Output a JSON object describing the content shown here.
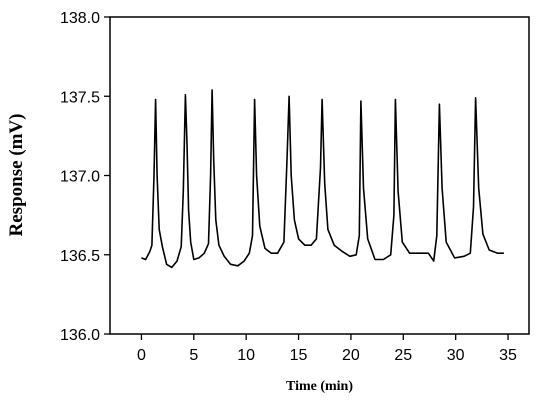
{
  "chart_data": {
    "type": "line",
    "xlabel": "Time (min)",
    "ylabel": "Response (mV)",
    "xlim": [
      -3,
      37
    ],
    "ylim": [
      136.0,
      138.0
    ],
    "xticks": [
      0,
      5,
      10,
      15,
      20,
      25,
      30,
      35
    ],
    "yticks": [
      136.0,
      136.5,
      137.0,
      137.5,
      138.0
    ],
    "xtick_labels": [
      "0",
      "5",
      "10",
      "15",
      "20",
      "25",
      "30",
      "35"
    ],
    "ytick_labels": [
      "136.0",
      "136.5",
      "137.0",
      "137.5",
      "138.0"
    ],
    "grid": false,
    "legend": "none",
    "series": [
      {
        "color": "#000000",
        "x": [
          0.0,
          0.4,
          0.8,
          1.0,
          1.2,
          1.35,
          1.5,
          1.7,
          2.0,
          2.4,
          2.9,
          3.4,
          3.8,
          4.0,
          4.2,
          4.35,
          4.5,
          4.7,
          5.0,
          5.5,
          6.0,
          6.4,
          6.6,
          6.75,
          6.9,
          7.1,
          7.4,
          7.9,
          8.5,
          9.2,
          9.8,
          10.3,
          10.6,
          10.8,
          11.0,
          11.3,
          11.8,
          12.4,
          13.0,
          13.6,
          13.9,
          14.1,
          14.3,
          14.6,
          15.0,
          15.6,
          16.2,
          16.7,
          17.1,
          17.25,
          17.5,
          17.8,
          18.4,
          19.2,
          19.9,
          20.5,
          20.8,
          20.95,
          21.2,
          21.6,
          22.3,
          23.1,
          23.8,
          24.1,
          24.25,
          24.5,
          24.9,
          25.6,
          26.5,
          27.4,
          27.9,
          28.2,
          28.45,
          28.7,
          29.1,
          29.9,
          30.8,
          31.4,
          31.7,
          31.9,
          32.2,
          32.6,
          33.2,
          34.0,
          34.6
        ],
        "y": [
          136.48,
          136.47,
          136.52,
          136.56,
          137.0,
          137.48,
          137.0,
          136.66,
          136.55,
          136.44,
          136.42,
          136.46,
          136.55,
          136.9,
          137.51,
          137.2,
          136.78,
          136.58,
          136.47,
          136.48,
          136.51,
          136.57,
          137.0,
          137.54,
          137.1,
          136.72,
          136.56,
          136.49,
          136.44,
          136.43,
          136.46,
          136.51,
          136.62,
          137.48,
          137.0,
          136.68,
          136.54,
          136.51,
          136.51,
          136.58,
          137.1,
          137.5,
          137.0,
          136.72,
          136.6,
          136.56,
          136.56,
          136.6,
          137.05,
          137.48,
          136.95,
          136.66,
          136.56,
          136.52,
          136.49,
          136.5,
          136.62,
          137.47,
          136.92,
          136.6,
          136.47,
          136.47,
          136.5,
          136.75,
          137.48,
          136.9,
          136.58,
          136.51,
          136.51,
          136.51,
          136.46,
          136.62,
          137.45,
          136.92,
          136.58,
          136.48,
          136.49,
          136.51,
          136.8,
          137.49,
          136.92,
          136.63,
          136.53,
          136.51,
          136.51
        ]
      }
    ]
  }
}
